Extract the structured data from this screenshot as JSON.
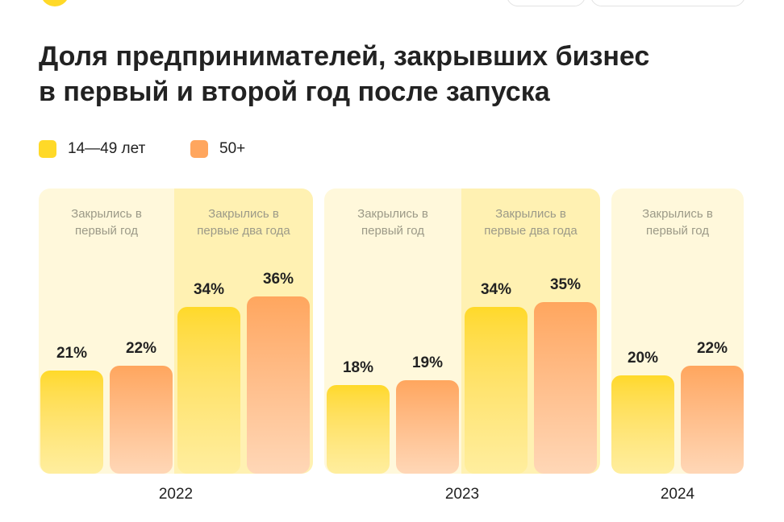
{
  "chart_data": {
    "type": "bar",
    "title": "Доля предпринимателей, закрывших бизнес в первый и второй год после запуска",
    "groups": [
      {
        "label": "2022",
        "categories": [
          "Закрылись в первый год",
          "Закрылись в первые два года"
        ]
      },
      {
        "label": "2023",
        "categories": [
          "Закрылись в первый год",
          "Закрылись в первые два года"
        ]
      },
      {
        "label": "2024",
        "categories": [
          "Закрылись в первый год"
        ]
      }
    ],
    "series": [
      {
        "name": "14—49 лет",
        "color": "#ffd928",
        "values": [
          21,
          34,
          18,
          34,
          20
        ],
        "value_labels": [
          "21%",
          "34%",
          "18%",
          "34%",
          "20%"
        ]
      },
      {
        "name": "50+",
        "color": "#ffa65e",
        "values": [
          22,
          36,
          19,
          35,
          22
        ],
        "value_labels": [
          "22%",
          "36%",
          "19%",
          "35%",
          "22%"
        ]
      }
    ]
  }
}
